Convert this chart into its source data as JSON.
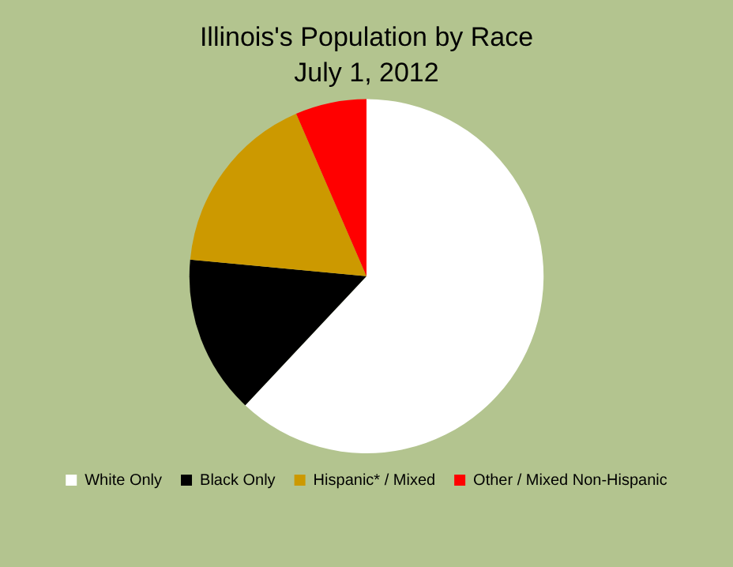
{
  "chart_data": {
    "type": "pie",
    "title": "Illinois's Population by Race",
    "subtitle": "July 1, 2012",
    "categories": [
      "White Only",
      "Black Only",
      "Hispanic* / Mixed",
      "Other / Mixed Non-Hispanic"
    ],
    "values": [
      62,
      14.5,
      17,
      6.5
    ],
    "colors": [
      "#ffffff",
      "#000000",
      "#cc9900",
      "#ff0000"
    ],
    "legend": "bottom"
  }
}
